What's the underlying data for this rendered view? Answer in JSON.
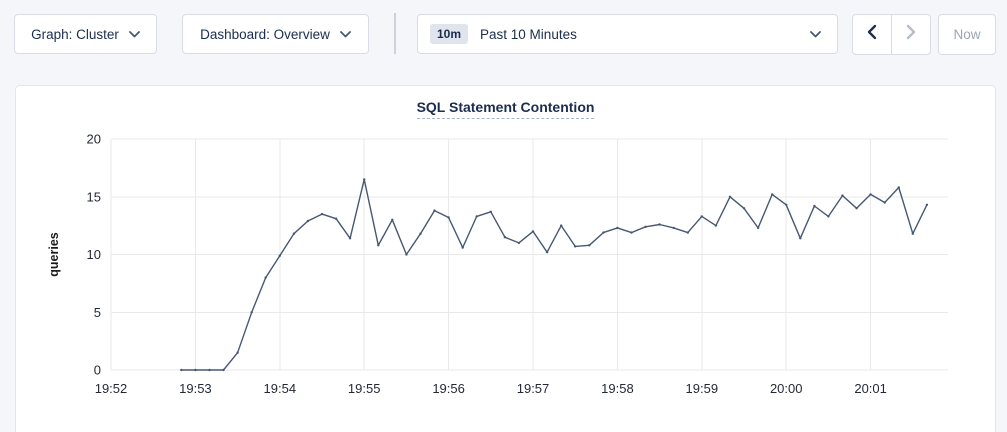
{
  "toolbar": {
    "graph_dropdown": {
      "label": "Graph: Cluster"
    },
    "dashboard_dropdown": {
      "label": "Dashboard: Overview"
    },
    "time_range": {
      "badge": "10m",
      "label": "Past 10 Minutes"
    },
    "now_button": {
      "label": "Now"
    }
  },
  "chart": {
    "title": "SQL Statement Contention"
  },
  "colors": {
    "accent_navy": "#1b2d4e",
    "line": "#475872",
    "disabled": "#9aa5b5",
    "page_bg": "#f5f6fa",
    "grid": "#e9e9e9"
  },
  "chart_data": {
    "type": "line",
    "title": "SQL Statement Contention",
    "xlabel": "",
    "ylabel": "queries",
    "ylim": [
      0,
      20
    ],
    "yticks": [
      0,
      5,
      10,
      15,
      20
    ],
    "x_domain": [
      "19:52:00",
      "20:01:55"
    ],
    "xticks": [
      "19:52",
      "19:53",
      "19:54",
      "19:55",
      "19:56",
      "19:57",
      "19:58",
      "19:59",
      "20:00",
      "20:01"
    ],
    "grid": true,
    "legend": "none",
    "line_color": "#475872",
    "series": [
      {
        "name": "queries",
        "points": [
          [
            "19:52:50",
            0
          ],
          [
            "19:53:00",
            0
          ],
          [
            "19:53:10",
            0
          ],
          [
            "19:53:20",
            0
          ],
          [
            "19:53:30",
            1.5
          ],
          [
            "19:53:40",
            5
          ],
          [
            "19:53:50",
            8
          ],
          [
            "19:54:00",
            9.9
          ],
          [
            "19:54:10",
            11.8
          ],
          [
            "19:54:20",
            12.9
          ],
          [
            "19:54:30",
            13.5
          ],
          [
            "19:54:40",
            13.1
          ],
          [
            "19:54:50",
            11.4
          ],
          [
            "19:55:00",
            16.5
          ],
          [
            "19:55:10",
            10.8
          ],
          [
            "19:55:20",
            13
          ],
          [
            "19:55:30",
            10
          ],
          [
            "19:55:40",
            11.8
          ],
          [
            "19:55:50",
            13.8
          ],
          [
            "19:56:00",
            13.2
          ],
          [
            "19:56:10",
            10.6
          ],
          [
            "19:56:20",
            13.3
          ],
          [
            "19:56:30",
            13.7
          ],
          [
            "19:56:40",
            11.5
          ],
          [
            "19:56:50",
            11
          ],
          [
            "19:57:00",
            12
          ],
          [
            "19:57:10",
            10.2
          ],
          [
            "19:57:20",
            12.5
          ],
          [
            "19:57:30",
            10.7
          ],
          [
            "19:57:40",
            10.8
          ],
          [
            "19:57:50",
            11.9
          ],
          [
            "19:58:00",
            12.3
          ],
          [
            "19:58:10",
            11.9
          ],
          [
            "19:58:20",
            12.4
          ],
          [
            "19:58:30",
            12.6
          ],
          [
            "19:58:40",
            12.3
          ],
          [
            "19:58:50",
            11.9
          ],
          [
            "19:59:00",
            13.3
          ],
          [
            "19:59:10",
            12.5
          ],
          [
            "19:59:20",
            15
          ],
          [
            "19:59:30",
            14
          ],
          [
            "19:59:40",
            12.3
          ],
          [
            "19:59:50",
            15.2
          ],
          [
            "20:00:00",
            14.3
          ],
          [
            "20:00:10",
            11.4
          ],
          [
            "20:00:20",
            14.2
          ],
          [
            "20:00:30",
            13.3
          ],
          [
            "20:00:40",
            15.1
          ],
          [
            "20:00:50",
            14
          ],
          [
            "20:01:00",
            15.2
          ],
          [
            "20:01:10",
            14.5
          ],
          [
            "20:01:20",
            15.8
          ],
          [
            "20:01:30",
            11.8
          ],
          [
            "20:01:40",
            14.3
          ]
        ]
      }
    ]
  }
}
